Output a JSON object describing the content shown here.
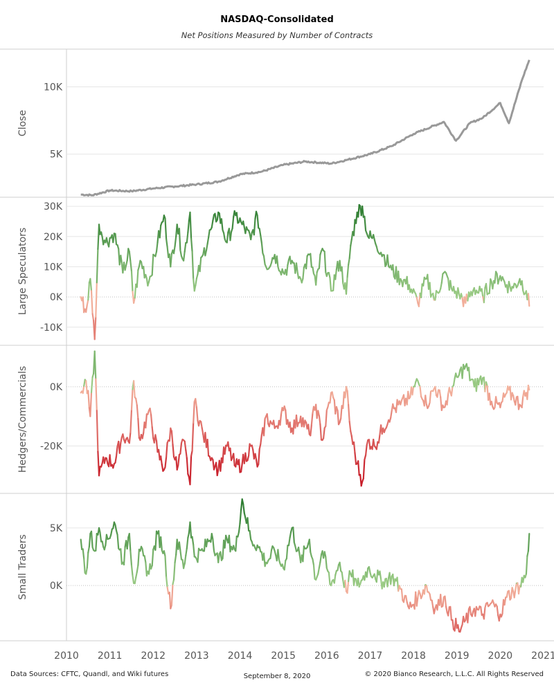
{
  "header": {
    "title": "NASDAQ-Consolidated",
    "subtitle": "Net Positions Measured by Number of Contracts"
  },
  "footer": {
    "sources": "Data Sources: CFTC, Quandl, and Wiki futures",
    "date": "September 8, 2020",
    "copyright": "© 2020 Bianco Research, L.L.C. All Rights Reserved"
  },
  "colors": {
    "close_line": "#999999",
    "positive_dark": "#2e7d32",
    "positive_light": "#9ccc86",
    "negative_light": "#f4b6a0",
    "negative_dark": "#c81e2a",
    "grid": "#e6e6e6",
    "zero_line": "#bfbfbf",
    "axis_text": "#555555"
  },
  "chart_data": [
    {
      "type": "line",
      "ylabel": "Close",
      "yticks": [
        5000,
        10000
      ],
      "ytick_labels": [
        "5K",
        "10K"
      ],
      "ylim": [
        1800,
        12800
      ],
      "color_mode": "solid",
      "x_years": [
        2010.33,
        2010.6,
        2011.0,
        2011.5,
        2012.0,
        2012.5,
        2013.0,
        2013.5,
        2014.0,
        2014.5,
        2015.0,
        2015.5,
        2016.1,
        2016.5,
        2017.0,
        2017.5,
        2018.0,
        2018.7,
        2018.98,
        2019.3,
        2019.6,
        2020.0,
        2020.2,
        2020.5,
        2020.67
      ],
      "values": [
        2000,
        1950,
        2300,
        2250,
        2450,
        2600,
        2750,
        2950,
        3500,
        3700,
        4200,
        4450,
        4300,
        4600,
        5000,
        5600,
        6500,
        7400,
        6000,
        7300,
        7700,
        8800,
        7300,
        10500,
        12000
      ]
    },
    {
      "type": "line",
      "ylabel": "Large Speculators",
      "yticks": [
        -10000,
        0,
        10000,
        20000,
        30000
      ],
      "ytick_labels": [
        "-10K",
        "0K",
        "10K",
        "20K",
        "30K"
      ],
      "ylim": [
        -16000,
        33000
      ],
      "color_mode": "diverging",
      "scale_max": 30000,
      "x_years": [
        2010.33,
        2010.45,
        2010.55,
        2010.65,
        2010.75,
        2010.9,
        2011.1,
        2011.3,
        2011.45,
        2011.55,
        2011.7,
        2011.9,
        2012.1,
        2012.25,
        2012.4,
        2012.55,
        2012.7,
        2012.85,
        2012.95,
        2013.15,
        2013.35,
        2013.5,
        2013.7,
        2013.9,
        2014.05,
        2014.25,
        2014.4,
        2014.6,
        2014.8,
        2015.0,
        2015.2,
        2015.4,
        2015.6,
        2015.75,
        2015.9,
        2016.1,
        2016.3,
        2016.45,
        2016.55,
        2016.7,
        2016.82,
        2016.95,
        2017.1,
        2017.3,
        2017.5,
        2017.7,
        2017.9,
        2018.1,
        2018.3,
        2018.5,
        2018.7,
        2018.9,
        2019.05,
        2019.2,
        2019.4,
        2019.6,
        2019.8,
        2020.0,
        2020.15,
        2020.3,
        2020.45,
        2020.6,
        2020.67
      ],
      "values": [
        0,
        -5000,
        6000,
        -14000,
        24000,
        18000,
        21000,
        8000,
        15000,
        -2000,
        12000,
        5000,
        18000,
        27000,
        10000,
        24000,
        12000,
        28000,
        2000,
        14000,
        23000,
        28000,
        18000,
        27000,
        24000,
        19000,
        27000,
        10000,
        14000,
        8000,
        12000,
        6000,
        14000,
        4000,
        16000,
        2000,
        12000,
        1000,
        17000,
        28000,
        30000,
        20000,
        19000,
        14000,
        9000,
        6000,
        4000,
        -2000,
        6000,
        -1000,
        8000,
        2000,
        1000,
        -2000,
        3000,
        0,
        5000,
        7000,
        4000,
        3000,
        6000,
        2000,
        -3000
      ]
    },
    {
      "type": "line",
      "ylabel": "Hedgers/Commercials",
      "yticks": [
        -20000,
        0
      ],
      "ytick_labels": [
        "-20K",
        "0K"
      ],
      "ylim": [
        -36000,
        14000
      ],
      "color_mode": "diverging",
      "scale_max": 30000,
      "x_years": [
        2010.33,
        2010.45,
        2010.55,
        2010.65,
        2010.75,
        2010.9,
        2011.1,
        2011.3,
        2011.45,
        2011.55,
        2011.7,
        2011.9,
        2012.1,
        2012.25,
        2012.4,
        2012.55,
        2012.7,
        2012.85,
        2012.95,
        2013.15,
        2013.35,
        2013.5,
        2013.7,
        2013.9,
        2014.05,
        2014.25,
        2014.4,
        2014.6,
        2014.8,
        2015.0,
        2015.2,
        2015.4,
        2015.6,
        2015.75,
        2015.9,
        2016.1,
        2016.3,
        2016.45,
        2016.55,
        2016.7,
        2016.82,
        2016.95,
        2017.1,
        2017.3,
        2017.5,
        2017.7,
        2017.9,
        2018.1,
        2018.3,
        2018.5,
        2018.7,
        2018.9,
        2019.05,
        2019.2,
        2019.4,
        2019.6,
        2019.8,
        2020.0,
        2020.15,
        2020.3,
        2020.45,
        2020.6,
        2020.67
      ],
      "values": [
        -2000,
        2000,
        -10000,
        12000,
        -30000,
        -24000,
        -26000,
        -16000,
        -19000,
        2000,
        -18000,
        -8000,
        -22000,
        -28000,
        -14000,
        -28000,
        -18000,
        -33000,
        -5000,
        -16000,
        -24000,
        -28000,
        -20000,
        -27000,
        -26000,
        -20000,
        -27000,
        -10000,
        -14000,
        -8000,
        -14000,
        -10000,
        -16000,
        -6000,
        -18000,
        -2000,
        -12000,
        0,
        -15000,
        -26000,
        -32000,
        -18000,
        -20000,
        -14000,
        -8000,
        -6000,
        -4000,
        2000,
        -6000,
        0,
        -7000,
        0,
        4000,
        7000,
        0,
        3000,
        -5000,
        -7000,
        -2000,
        -3000,
        -6000,
        -2000,
        -1000
      ]
    },
    {
      "type": "line",
      "ylabel": "Small Traders",
      "yticks": [
        0,
        5000
      ],
      "ytick_labels": [
        "0K",
        "5K"
      ],
      "ylim": [
        -4800,
        8000
      ],
      "color_mode": "diverging",
      "scale_max": 7000,
      "x_years": [
        2010.33,
        2010.45,
        2010.55,
        2010.65,
        2010.75,
        2010.9,
        2011.1,
        2011.3,
        2011.45,
        2011.55,
        2011.7,
        2011.9,
        2012.1,
        2012.25,
        2012.4,
        2012.55,
        2012.7,
        2012.85,
        2012.95,
        2013.15,
        2013.35,
        2013.5,
        2013.7,
        2013.9,
        2014.05,
        2014.25,
        2014.4,
        2014.6,
        2014.8,
        2015.0,
        2015.2,
        2015.4,
        2015.6,
        2015.75,
        2015.9,
        2016.1,
        2016.3,
        2016.45,
        2016.55,
        2016.7,
        2016.82,
        2016.95,
        2017.1,
        2017.3,
        2017.5,
        2017.7,
        2017.9,
        2018.1,
        2018.3,
        2018.5,
        2018.7,
        2018.9,
        2019.05,
        2019.2,
        2019.4,
        2019.6,
        2019.8,
        2020.0,
        2020.15,
        2020.3,
        2020.45,
        2020.6,
        2020.67
      ],
      "values": [
        4000,
        1000,
        4500,
        3000,
        5000,
        3500,
        5500,
        2000,
        4500,
        200,
        3000,
        1000,
        4500,
        3000,
        -2000,
        4000,
        1500,
        5500,
        2500,
        3000,
        4500,
        2000,
        4000,
        3000,
        7500,
        4000,
        3500,
        2000,
        3000,
        1500,
        5000,
        2000,
        4000,
        500,
        3000,
        0,
        2000,
        -500,
        1000,
        0,
        500,
        1500,
        1000,
        300,
        800,
        -300,
        -2000,
        -1000,
        0,
        -2000,
        -1000,
        -3000,
        -4000,
        -3000,
        -2000,
        -2500,
        -1500,
        -2500,
        -1000,
        -500,
        0,
        1000,
        4500
      ]
    }
  ],
  "x_axis": {
    "domain": [
      2010.0,
      2021.0
    ],
    "tick_labels": [
      "2010",
      "2011",
      "2012",
      "2013",
      "2014",
      "2015",
      "2016",
      "2017",
      "2018",
      "2019",
      "2020",
      "2021"
    ]
  }
}
